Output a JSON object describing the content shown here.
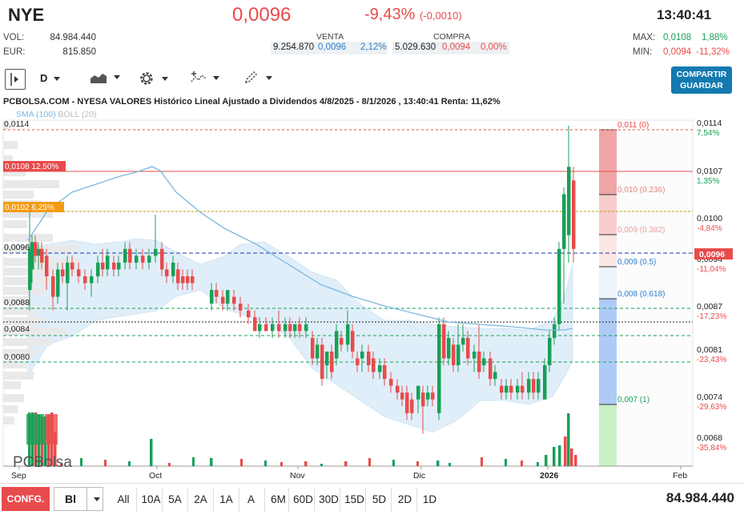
{
  "header": {
    "ticker": "NYE",
    "price": "0,0096",
    "change_pct": "-9,43%",
    "change_abs": "(-0,0010)",
    "time": "13:40:41",
    "vol_label": "VOL:",
    "vol_value": "84.984.440",
    "eur_label": "EUR:",
    "eur_value": "815.850",
    "venta_label": "VENTA",
    "venta_qty": "9.254.870",
    "venta_price": "0,0096",
    "venta_pct": "2,12%",
    "compra_label": "COMPRA",
    "compra_qty": "5.029.630",
    "compra_price": "0,0094",
    "compra_pct": "0,00%",
    "max_label": "MAX:",
    "max_value": "0,0108",
    "max_pct": "1,88%",
    "min_label": "MIN:",
    "min_value": "0,0094",
    "min_pct": "-11,32%"
  },
  "toolbar": {
    "period": "D",
    "share_label_1": "COMPARTIR",
    "share_label_2": "GUARDAR",
    "icons": [
      "sidebar-toggle-icon",
      "chart-type-icon",
      "gear-icon",
      "indicators-icon",
      "pencil-icon"
    ]
  },
  "chart": {
    "title": "PCBOLSA.COM - NYESA VALORES Histórico Lineal Ajustado a Dividendos 4/8/2025 - 8/1/2026 , 13:40:41 Renta: 11,62%",
    "indicators_sma": "SMA (100)",
    "indicators_boll": "BOLL (20)",
    "watermark": "PCBolsa",
    "left_labels": [
      "0,0114",
      "0,0096",
      "0,0088",
      "0,0084",
      "0,0080"
    ],
    "tag_max": "0,0108  12,50%",
    "tag_mid": "0,0102  6,25%",
    "current_tag": "0,0096",
    "right_axis": [
      {
        "v": "0,0114",
        "p": "7,54%"
      },
      {
        "v": "0,0107",
        "p": "1,35%"
      },
      {
        "v": "0,0100",
        "p": "-4,84%"
      },
      {
        "v": "0,0094",
        "p": "-11,04%"
      },
      {
        "v": "0,0087",
        "p": "-17,23%"
      },
      {
        "v": "0,0081",
        "p": "-23,43%"
      },
      {
        "v": "0,0074",
        "p": "-29,63%"
      },
      {
        "v": "0,0068",
        "p": "-35,84%"
      }
    ],
    "fib_labels": [
      "0,011 (0)",
      "0,010 (0.236)",
      "0,009 (0.382)",
      "0,009 (0.5)",
      "0,008 (0.618)",
      "0,007 (1)"
    ],
    "x_labels": [
      "Sep",
      "Oct",
      "Nov",
      "Dic",
      "2026",
      "Feb"
    ],
    "colors": {
      "up": "#18a058",
      "down": "#e84b4b",
      "sma": "#7ab8e0",
      "band": "#d6e9f7"
    }
  },
  "bottom": {
    "config_label": "CONFG.",
    "select_value": "Bl",
    "timeframes": [
      "All",
      "10A",
      "5A",
      "2A",
      "1A",
      "A",
      "6M",
      "60D",
      "30D",
      "15D",
      "5D",
      "2D",
      "1D"
    ],
    "volume_total": "84.984.440"
  }
}
